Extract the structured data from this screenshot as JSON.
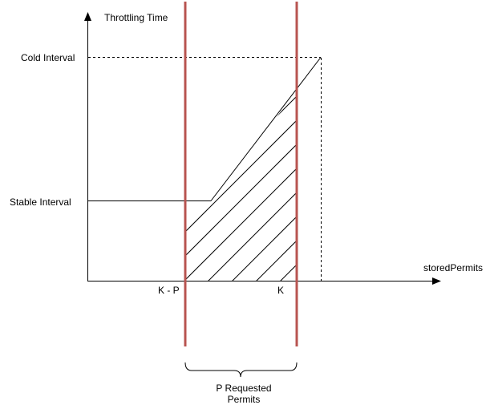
{
  "diagram": {
    "y_axis_label": "Throttling Time",
    "x_axis_label": "storedPermits",
    "y_ticks": {
      "cold_interval": "Cold Interval",
      "stable_interval": "Stable Interval"
    },
    "x_ticks": {
      "k_minus_p": "K - P",
      "k": "K"
    },
    "brace_label": {
      "line1": "P Requested",
      "line2": "Permits"
    },
    "colors": {
      "axis": "#000000",
      "marker_line": "#b85450",
      "hatch": "#000000"
    }
  }
}
